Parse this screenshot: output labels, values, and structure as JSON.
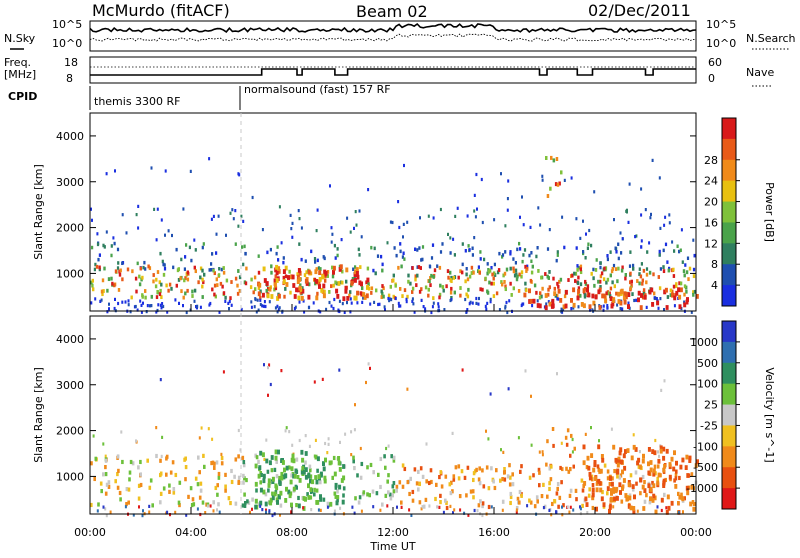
{
  "header": {
    "station": "McMurdo (fitACF)",
    "beam": "Beam 02",
    "date": "02/Dec/2011"
  },
  "top_panels": {
    "n_sky_label": "N.Sky",
    "n_search_label": "N.Search",
    "freq_label_line1": "Freq.",
    "freq_label_line2": "[MHz]",
    "nave_label": "Nave",
    "cpid_label": "CPID",
    "noise_left_ticks": [
      "10^5",
      "10^0"
    ],
    "noise_right_ticks": [
      "10^5",
      "10^0"
    ],
    "freq_ticks": [
      "18",
      "8"
    ],
    "nave_ticks": [
      "60",
      "0"
    ],
    "cpid_segments": [
      {
        "label": "themis 3300 RF",
        "start_hour": 0
      },
      {
        "label": "normalsound (fast) 157 RF",
        "start_hour": 6
      }
    ]
  },
  "chart_data": [
    {
      "type": "heatmap",
      "title": "",
      "xlabel": "",
      "ylabel": "Slant Range [km]",
      "colorbar_label": "Power [dB]",
      "xlim": [
        "00:00",
        "24:00"
      ],
      "ylim": [
        180,
        4500
      ],
      "y_ticks": [
        1000,
        2000,
        3000,
        4000
      ],
      "colorbar_ticks": [
        "4",
        "8",
        "12",
        "16",
        "20",
        "24",
        "28"
      ],
      "colorbar_colors": [
        "#1a2fe0",
        "#1f4fb0",
        "#2f7f5f",
        "#4aa34a",
        "#7fc13a",
        "#e8c010",
        "#f08a1a",
        "#e85a18",
        "#d81a1a"
      ]
    },
    {
      "type": "heatmap",
      "title": "",
      "xlabel": "Time UT",
      "ylabel": "Slant Range [km]",
      "colorbar_label": "Velocity [m s^-1]",
      "xlim": [
        "00:00",
        "24:00"
      ],
      "ylim": [
        180,
        4500
      ],
      "y_ticks": [
        1000,
        2000,
        3000,
        4000
      ],
      "x_ticks": [
        "00:00",
        "04:00",
        "08:00",
        "12:00",
        "16:00",
        "20:00",
        "00:00"
      ],
      "colorbar_ticks": [
        "1000",
        "500",
        "100",
        "25",
        "-25",
        "-100",
        "-500",
        "-1000"
      ],
      "colorbar_colors": [
        "#2838c8",
        "#2f6fb0",
        "#2f8f5f",
        "#6cc03a",
        "#c8c8c8",
        "#f0c020",
        "#f08a1a",
        "#e85010",
        "#e01818"
      ]
    }
  ],
  "colors": {
    "frame": "#000000",
    "dashed_marker": "#c8c8c8"
  }
}
